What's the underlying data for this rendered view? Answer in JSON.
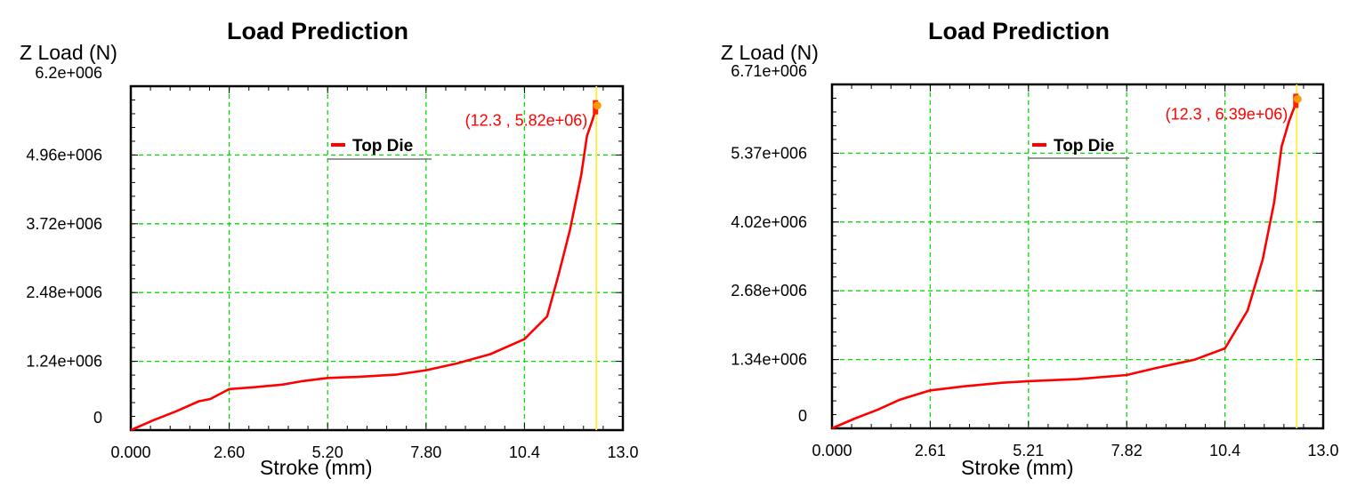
{
  "chart_data": [
    {
      "type": "line",
      "title": "Load Prediction",
      "ylabel": "Z Load (N)",
      "xlabel": "Stroke (mm)",
      "xlim": [
        0,
        13.0
      ],
      "ylim": [
        0,
        6200000
      ],
      "x_ticks": [
        "0.000",
        "2.60",
        "5.20",
        "7.80",
        "10.4",
        "13.0"
      ],
      "y_ticks": [
        "0",
        "1.24e+006",
        "2.48e+006",
        "3.72e+006",
        "4.96e+006",
        "6.2e+006"
      ],
      "grid": true,
      "legend": {
        "position": "top-center",
        "entries": [
          "Top Die"
        ]
      },
      "series": [
        {
          "name": "Top Die",
          "color": "#ff0000",
          "points": [
            [
              0,
              0
            ],
            [
              0.6,
              180000
            ],
            [
              1.2,
              340000
            ],
            [
              1.8,
              520000
            ],
            [
              2.1,
              560000
            ],
            [
              2.6,
              740000
            ],
            [
              3.2,
              770000
            ],
            [
              4.0,
              820000
            ],
            [
              4.5,
              880000
            ],
            [
              5.2,
              940000
            ],
            [
              6.0,
              960000
            ],
            [
              7.0,
              1000000
            ],
            [
              7.8,
              1080000
            ],
            [
              8.6,
              1200000
            ],
            [
              9.5,
              1370000
            ],
            [
              10.4,
              1640000
            ],
            [
              11.0,
              2050000
            ],
            [
              11.3,
              2800000
            ],
            [
              11.6,
              3600000
            ],
            [
              11.9,
              4600000
            ],
            [
              12.05,
              5300000
            ],
            [
              12.2,
              5600000
            ],
            [
              12.3,
              5820000
            ]
          ]
        }
      ],
      "annotation": {
        "text": "(12.3 , 5.82e+06)",
        "x": 12.3,
        "y": 5820000
      },
      "marker_line_x": 12.3
    },
    {
      "type": "line",
      "title": "Load Prediction",
      "ylabel": "Z Load (N)",
      "xlabel": "Stroke (mm)",
      "xlim": [
        0,
        13.0
      ],
      "ylim": [
        0,
        6710000
      ],
      "x_ticks": [
        "0.000",
        "2.61",
        "5.21",
        "7.82",
        "10.4",
        "13.0"
      ],
      "y_ticks": [
        "0",
        "1.34e+006",
        "2.68e+006",
        "4.02e+006",
        "5.37e+006",
        "6.71e+006"
      ],
      "grid": true,
      "legend": {
        "position": "top-center",
        "entries": [
          "Top Die"
        ]
      },
      "series": [
        {
          "name": "Top Die",
          "color": "#ff0000",
          "points": [
            [
              0,
              0
            ],
            [
              0.6,
              190000
            ],
            [
              1.2,
              360000
            ],
            [
              1.8,
              560000
            ],
            [
              2.6,
              740000
            ],
            [
              3.5,
              820000
            ],
            [
              4.5,
              890000
            ],
            [
              5.2,
              920000
            ],
            [
              6.5,
              960000
            ],
            [
              7.8,
              1040000
            ],
            [
              8.6,
              1180000
            ],
            [
              9.6,
              1340000
            ],
            [
              10.4,
              1560000
            ],
            [
              11.0,
              2300000
            ],
            [
              11.4,
              3300000
            ],
            [
              11.7,
              4400000
            ],
            [
              11.9,
              5500000
            ],
            [
              12.1,
              6000000
            ],
            [
              12.3,
              6390000
            ]
          ]
        }
      ],
      "annotation": {
        "text": "(12.3 , 6.39e+06)",
        "x": 12.3,
        "y": 6390000
      },
      "marker_line_x": 12.3
    }
  ]
}
